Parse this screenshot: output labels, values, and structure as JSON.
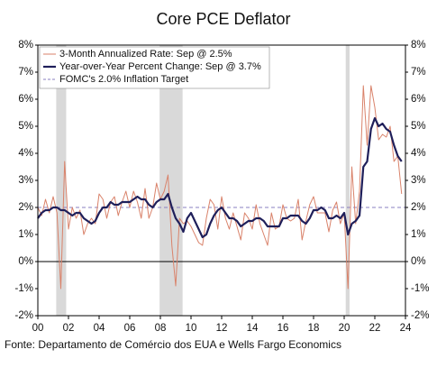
{
  "chart_data": {
    "type": "line",
    "title": "Core PCE Deflator",
    "source": "Fonte: Departamento de Comércio dos EUA e Wells Fargo Economics",
    "x": [
      2000,
      2000.25,
      2000.5,
      2000.75,
      2001,
      2001.25,
      2001.5,
      2001.75,
      2002,
      2002.25,
      2002.5,
      2002.75,
      2003,
      2003.25,
      2003.5,
      2003.75,
      2004,
      2004.25,
      2004.5,
      2004.75,
      2005,
      2005.25,
      2005.5,
      2005.75,
      2006,
      2006.25,
      2006.5,
      2006.75,
      2007,
      2007.25,
      2007.5,
      2007.75,
      2008,
      2008.25,
      2008.5,
      2008.75,
      2009,
      2009.25,
      2009.5,
      2009.75,
      2010,
      2010.25,
      2010.5,
      2010.75,
      2011,
      2011.25,
      2011.5,
      2011.75,
      2012,
      2012.25,
      2012.5,
      2012.75,
      2013,
      2013.25,
      2013.5,
      2013.75,
      2014,
      2014.25,
      2014.5,
      2014.75,
      2015,
      2015.25,
      2015.5,
      2015.75,
      2016,
      2016.25,
      2016.5,
      2016.75,
      2017,
      2017.25,
      2017.5,
      2017.75,
      2018,
      2018.25,
      2018.5,
      2018.75,
      2019,
      2019.25,
      2019.5,
      2019.75,
      2020,
      2020.25,
      2020.5,
      2020.75,
      2021,
      2021.25,
      2021.5,
      2021.75,
      2022,
      2022.25,
      2022.5,
      2022.75,
      2023,
      2023.25,
      2023.5,
      2023.75
    ],
    "series": [
      {
        "name": "3-Month Annualized Rate: Sep @ 2.5%",
        "color": "#d9826a",
        "width": 1,
        "values": [
          2.0,
          1.7,
          2.3,
          1.8,
          2.4,
          1.8,
          -1.0,
          3.7,
          1.2,
          2.0,
          1.6,
          1.9,
          1.0,
          1.4,
          1.6,
          1.4,
          2.5,
          2.3,
          1.6,
          2.2,
          2.4,
          1.7,
          2.2,
          2.6,
          2.0,
          2.6,
          2.2,
          1.6,
          2.7,
          1.6,
          2.0,
          2.9,
          2.3,
          2.6,
          3.2,
          0.6,
          -0.9,
          1.6,
          1.4,
          1.5,
          1.3,
          1.0,
          0.7,
          0.6,
          1.6,
          2.3,
          2.1,
          1.2,
          2.4,
          1.6,
          1.2,
          1.8,
          1.3,
          0.8,
          1.8,
          1.6,
          1.2,
          2.1,
          1.4,
          1.0,
          0.6,
          1.8,
          1.2,
          1.3,
          2.1,
          1.6,
          1.5,
          1.6,
          2.3,
          0.8,
          1.5,
          2.1,
          2.4,
          1.8,
          1.8,
          1.8,
          1.1,
          1.9,
          2.2,
          1.4,
          1.8,
          -1.0,
          3.5,
          1.4,
          2.6,
          6.5,
          4.3,
          6.5,
          5.7,
          4.5,
          4.7,
          4.6,
          5.0,
          3.7,
          3.9,
          2.5
        ]
      },
      {
        "name": "Year-over-Year Percent Change: Sep @ 3.7%",
        "color": "#1f1f5a",
        "width": 2.2,
        "values": [
          1.6,
          1.8,
          1.9,
          1.9,
          2.0,
          2.0,
          1.9,
          1.9,
          1.8,
          1.7,
          1.8,
          1.8,
          1.6,
          1.5,
          1.4,
          1.5,
          1.8,
          2.0,
          2.0,
          2.2,
          2.1,
          2.1,
          2.2,
          2.2,
          2.2,
          2.3,
          2.4,
          2.3,
          2.3,
          2.1,
          2.0,
          2.2,
          2.3,
          2.3,
          2.5,
          2.0,
          1.6,
          1.4,
          1.1,
          1.6,
          1.8,
          1.5,
          1.2,
          0.9,
          1.0,
          1.4,
          1.7,
          1.9,
          2.0,
          1.8,
          1.6,
          1.6,
          1.5,
          1.3,
          1.4,
          1.5,
          1.5,
          1.6,
          1.6,
          1.5,
          1.3,
          1.3,
          1.3,
          1.3,
          1.6,
          1.6,
          1.7,
          1.7,
          1.7,
          1.5,
          1.4,
          1.6,
          1.9,
          1.9,
          2.0,
          1.9,
          1.6,
          1.6,
          1.7,
          1.6,
          1.8,
          1.0,
          1.4,
          1.5,
          1.7,
          3.5,
          3.7,
          4.9,
          5.3,
          5.0,
          5.1,
          4.9,
          4.8,
          4.3,
          3.9,
          3.7
        ]
      }
    ],
    "reference_line": {
      "name": "FOMC's 2.0% Inflation Target",
      "value": 2,
      "color": "#8a7fc0",
      "dashed": true
    },
    "shaded_regions": [
      [
        2001.2,
        2001.85
      ],
      [
        2007.95,
        2009.45
      ],
      [
        2020.1,
        2020.35
      ]
    ],
    "shade_color": "#d9d9d9",
    "xlim": [
      2000,
      2024
    ],
    "xticks": [
      {
        "value": 2000,
        "label": "00"
      },
      {
        "value": 2002,
        "label": "02"
      },
      {
        "value": 2004,
        "label": "04"
      },
      {
        "value": 2006,
        "label": "06"
      },
      {
        "value": 2008,
        "label": "08"
      },
      {
        "value": 2010,
        "label": "10"
      },
      {
        "value": 2012,
        "label": "12"
      },
      {
        "value": 2014,
        "label": "14"
      },
      {
        "value": 2016,
        "label": "16"
      },
      {
        "value": 2018,
        "label": "18"
      },
      {
        "value": 2020,
        "label": "20"
      },
      {
        "value": 2022,
        "label": "22"
      },
      {
        "value": 2024,
        "label": "24"
      }
    ],
    "ylim": [
      -2,
      8
    ],
    "yticks": [
      {
        "value": -2,
        "label": "-2%"
      },
      {
        "value": -1,
        "label": "-1%"
      },
      {
        "value": 0,
        "label": "0%"
      },
      {
        "value": 1,
        "label": "1%"
      },
      {
        "value": 2,
        "label": "2%"
      },
      {
        "value": 3,
        "label": "3%"
      },
      {
        "value": 4,
        "label": "4%"
      },
      {
        "value": 5,
        "label": "5%"
      },
      {
        "value": 6,
        "label": "6%"
      },
      {
        "value": 7,
        "label": "7%"
      },
      {
        "value": 8,
        "label": "8%"
      }
    ],
    "y2lim": [
      -2,
      8
    ],
    "y2ticks": [
      {
        "value": -2,
        "label": "-2%"
      },
      {
        "value": -1,
        "label": "-1%"
      },
      {
        "value": 0,
        "label": "0%"
      },
      {
        "value": 1,
        "label": "1%"
      },
      {
        "value": 2,
        "label": "2%"
      },
      {
        "value": 3,
        "label": "3%"
      },
      {
        "value": 4,
        "label": "4%"
      },
      {
        "value": 5,
        "label": "5%"
      },
      {
        "value": 6,
        "label": "6%"
      },
      {
        "value": 7,
        "label": "7%"
      },
      {
        "value": 8,
        "label": "8%"
      }
    ],
    "legend": "upper left"
  }
}
